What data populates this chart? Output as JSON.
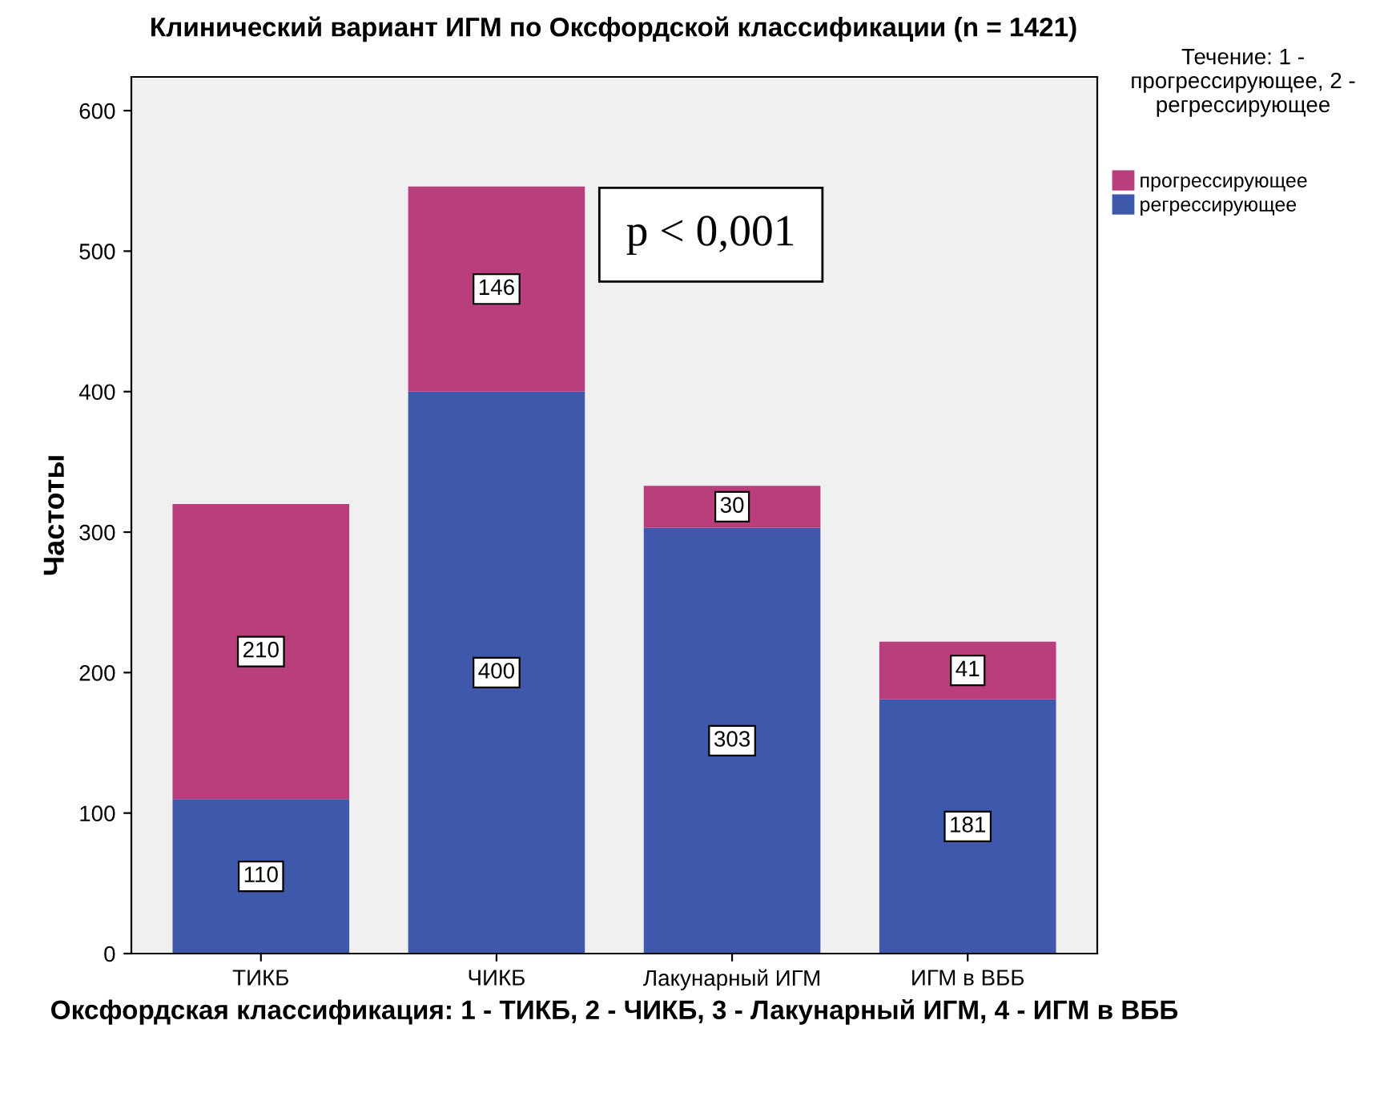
{
  "chart_data": {
    "type": "bar",
    "title": "Клинический вариант ИГМ по Оксфордской классификации (n = 1421)",
    "xlabel": "Оксфордская классификация: 1 - ТИКБ, 2 - ЧИКБ, 3 - Лакунарный ИГМ, 4 - ИГМ в ВББ",
    "ylabel": "Частоты",
    "legend_title": "Течение: 1 - прогрессирующее, 2 - регрессирующее",
    "categories": [
      "ТИКБ",
      "ЧИКБ",
      "Лакунарный ИГМ",
      "ИГМ в ВББ"
    ],
    "stacked": true,
    "series": [
      {
        "name": "регрессирующее",
        "color": "#3e58ac",
        "values": [
          110,
          400,
          303,
          181
        ]
      },
      {
        "name": "прогрессирующее",
        "color": "#b93e7c",
        "values": [
          210,
          146,
          30,
          41
        ]
      }
    ],
    "ylim": [
      0,
      624
    ],
    "yticks": [
      0,
      100,
      200,
      300,
      400,
      500,
      600
    ],
    "data_labels": true,
    "grid": false,
    "legend": "right",
    "annotations": [
      "p < 0,001"
    ]
  }
}
